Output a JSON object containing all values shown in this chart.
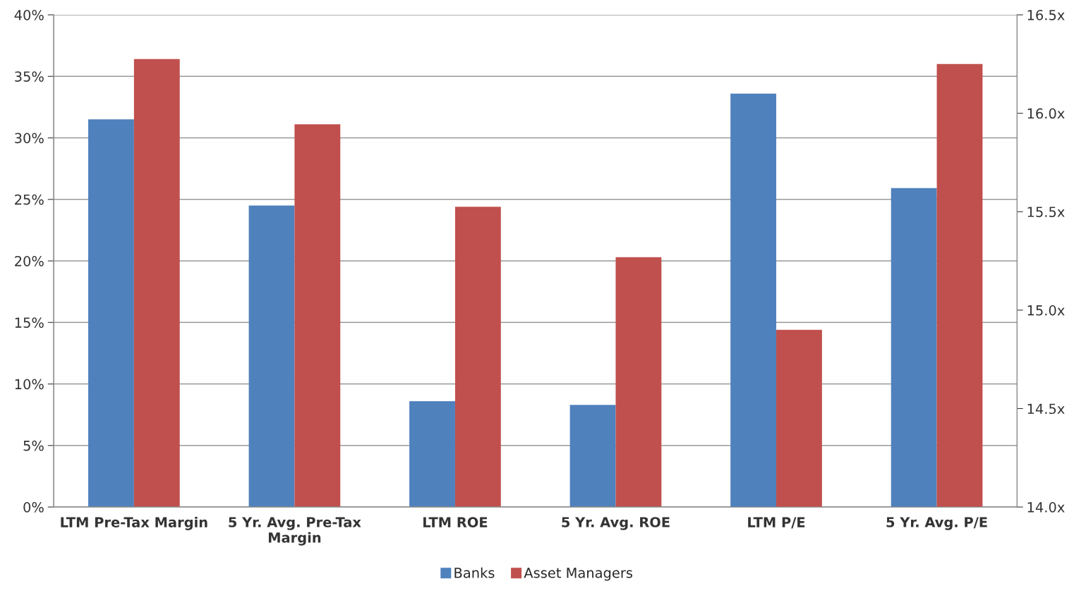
{
  "chart_data": {
    "type": "bar",
    "categories": [
      "LTM Pre-Tax Margin",
      "5 Yr. Avg. Pre-Tax Margin",
      "LTM ROE",
      "5 Yr. Avg. ROE",
      "LTM P/E",
      "5 Yr. Avg. P/E"
    ],
    "series": [
      {
        "name": "Banks",
        "color": "#4f81bd",
        "values": [
          31.5,
          24.5,
          8.6,
          8.3,
          null,
          null
        ]
      },
      {
        "name": "Asset Managers",
        "color": "#c0504d",
        "values": [
          36.4,
          31.1,
          24.4,
          20.3,
          null,
          null
        ]
      },
      {
        "color": "#4f81bd",
        "axis": "y2",
        "values": [
          null,
          null,
          null,
          null,
          16.1,
          15.62
        ]
      },
      {
        "color": "#c0504d",
        "axis": "y2",
        "values": [
          null,
          null,
          null,
          null,
          14.9,
          16.25
        ]
      }
    ],
    "ylim": [
      0,
      40
    ],
    "yticks": [
      {
        "value": 0,
        "label": "0%"
      },
      {
        "value": 5,
        "label": "5%"
      },
      {
        "value": 10,
        "label": "10%"
      },
      {
        "value": 15,
        "label": "15%"
      },
      {
        "value": 20,
        "label": "20%"
      },
      {
        "value": 25,
        "label": "25%"
      },
      {
        "value": 30,
        "label": "30%"
      },
      {
        "value": 35,
        "label": "35%"
      },
      {
        "value": 40,
        "label": "40%"
      }
    ],
    "y2lim": [
      14.0,
      16.5
    ],
    "y2ticks": [
      {
        "value": 14.0,
        "label": "14.0x"
      },
      {
        "value": 14.5,
        "label": "14.5x"
      },
      {
        "value": 15.0,
        "label": "15.0x"
      },
      {
        "value": 15.5,
        "label": "15.5x"
      },
      {
        "value": 16.0,
        "label": "16.0x"
      },
      {
        "value": 16.5,
        "label": "16.5x"
      }
    ],
    "grid": "y",
    "legend": "bottom"
  }
}
